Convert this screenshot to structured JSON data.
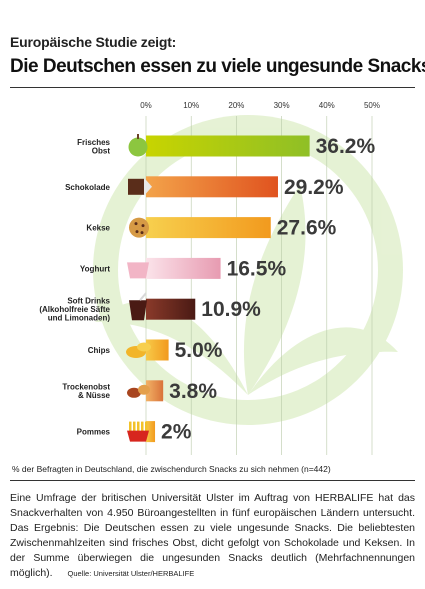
{
  "header": {
    "kicker": "Europäische Studie zeigt:",
    "headline": "Die Deutschen essen zu viele ungesunde Snacks"
  },
  "chart_data": {
    "type": "bar",
    "orientation": "horizontal",
    "axis": {
      "ticks": [
        "0%",
        "10%",
        "20%",
        "30%",
        "40%",
        "50%"
      ],
      "xlim": [
        0,
        50
      ]
    },
    "categories": [
      {
        "lines": [
          "Frisches",
          "Obst"
        ],
        "icon": "apple-icon"
      },
      {
        "lines": [
          "Schokolade"
        ],
        "icon": "chocolate-icon"
      },
      {
        "lines": [
          "Kekse"
        ],
        "icon": "cookie-icon"
      },
      {
        "lines": [
          "Yoghurt"
        ],
        "icon": "yoghurt-icon"
      },
      {
        "lines": [
          "Soft Drinks",
          "(Alkoholfreie Säfte",
          "und Limonaden)"
        ],
        "icon": "soft-drink-icon"
      },
      {
        "lines": [
          "Chips"
        ],
        "icon": "chips-icon"
      },
      {
        "lines": [
          "Trockenobst",
          "& Nüsse"
        ],
        "icon": "nuts-icon"
      },
      {
        "lines": [
          "Pommes"
        ],
        "icon": "fries-icon"
      }
    ],
    "values": [
      36.2,
      29.2,
      27.6,
      16.5,
      10.9,
      5.0,
      3.8,
      2
    ],
    "value_labels": [
      "36.2%",
      "29.2%",
      "27.6%",
      "16.5%",
      "10.9%",
      "5.0%",
      "3.8%",
      "2%"
    ],
    "colors": [
      [
        "#c8d400",
        "#8fbf26"
      ],
      [
        "#f3a34a",
        "#e0531f"
      ],
      [
        "#f7d04e",
        "#f29a1e"
      ],
      [
        "#fbe3ea",
        "#e79bb1"
      ],
      [
        "#8a3a2a",
        "#4a1a14"
      ],
      [
        "#f7c948",
        "#f29a1e"
      ],
      [
        "#f2b266",
        "#d9733a"
      ],
      [
        "#f7c948",
        "#f29a1e"
      ]
    ],
    "grid": true,
    "background_logo": "herbalife-leaf-logo"
  },
  "footnote": "% der Befragten in Deutschland, die zwischendurch Snacks zu sich nehmen (n=442)",
  "body_text": "Eine Umfrage der britischen Universität Ulster im Auftrag von HERBALIFE hat das Snackverhalten von 4.950 Büroangestellten in fünf europäischen Ländern untersucht. Das Ergebnis: Die Deutschen essen zu viele ungesunde Snacks. Die beliebtesten Zwischenmahlzeiten sind frisches Obst, dicht gefolgt von Schokolade und Keksen. In der Summe überwiegen die ungesunden Snacks deutlich (Mehrfachnennungen möglich).",
  "source": "Quelle: Universität Ulster/HERBALIFE"
}
